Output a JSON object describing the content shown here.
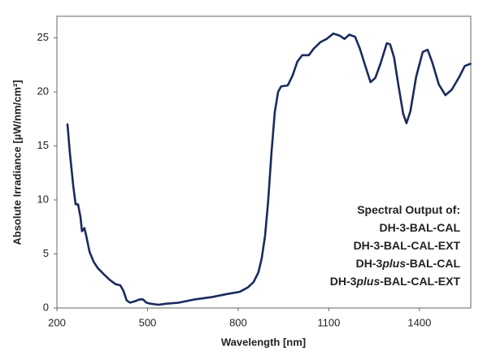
{
  "chart_data": {
    "type": "line",
    "xlabel": "Wavelength [nm]",
    "ylabel": "Absolute Irradiance [µW/nm/cm²]",
    "annotation": [
      [
        "Spectral Output of:"
      ],
      [
        "DH-3-BAL-CAL"
      ],
      [
        "DH-3-BAL-CAL-EXT"
      ],
      [
        "DH-3",
        "plus",
        "-BAL-CAL"
      ],
      [
        "DH-3",
        "plus",
        "-BAL-CAL-EXT"
      ]
    ],
    "x": [
      235,
      243,
      254,
      262,
      270,
      278,
      283,
      291,
      297,
      308,
      321,
      335,
      356,
      375,
      394,
      410,
      420,
      431,
      442,
      456,
      474,
      485,
      496,
      509,
      536,
      563,
      604,
      657,
      711,
      765,
      805,
      832,
      851,
      867,
      878,
      889,
      899,
      910,
      921,
      932,
      942,
      964,
      980,
      996,
      1012,
      1034,
      1050,
      1072,
      1093,
      1115,
      1136,
      1152,
      1168,
      1187,
      1203,
      1222,
      1238,
      1254,
      1271,
      1292,
      1303,
      1316,
      1330,
      1346,
      1357,
      1370,
      1389,
      1411,
      1427,
      1443,
      1464,
      1486,
      1507,
      1532,
      1550,
      1569
    ],
    "series": [
      {
        "color": "#1b2a5e",
        "values": [
          17.0,
          14.3,
          11.3,
          9.6,
          9.6,
          8.4,
          7.1,
          7.4,
          6.7,
          5.2,
          4.3,
          3.7,
          3.1,
          2.6,
          2.2,
          2.1,
          1.6,
          0.7,
          0.5,
          0.6,
          0.8,
          0.8,
          0.5,
          0.4,
          0.3,
          0.4,
          0.5,
          0.8,
          1.0,
          1.3,
          1.5,
          1.9,
          2.4,
          3.3,
          4.6,
          6.7,
          9.8,
          14.3,
          18.1,
          20.0,
          20.5,
          20.6,
          21.5,
          22.8,
          23.4,
          23.4,
          24.0,
          24.6,
          24.9,
          25.4,
          25.2,
          24.9,
          25.3,
          25.1,
          24.0,
          22.3,
          20.9,
          21.3,
          22.6,
          24.5,
          24.4,
          23.2,
          20.7,
          18.0,
          17.1,
          18.2,
          21.4,
          23.7,
          23.9,
          22.7,
          20.7,
          19.7,
          20.2,
          21.4,
          22.4,
          22.6
        ]
      }
    ],
    "xlim": [
      200,
      1570
    ],
    "xticks": [
      200,
      500,
      800,
      1100,
      1400
    ],
    "ylim": [
      0,
      27
    ],
    "yticks": [
      0,
      5,
      10,
      15,
      20,
      25
    ]
  }
}
